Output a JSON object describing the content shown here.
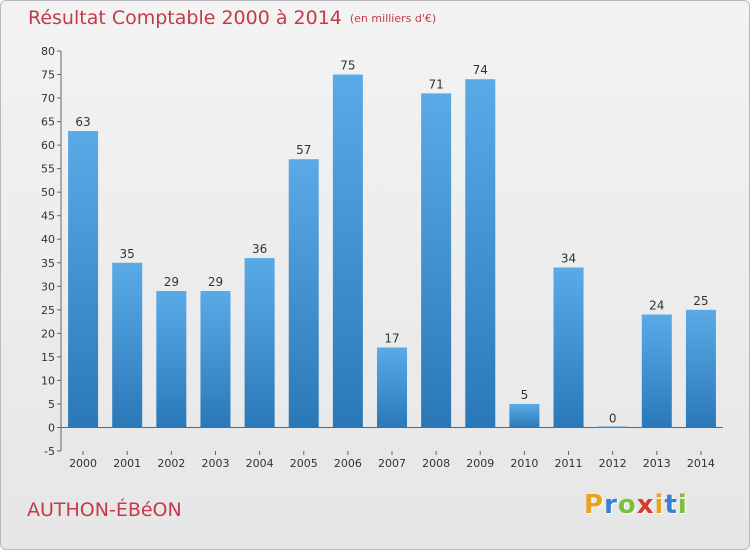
{
  "title": "Résultat Comptable 2000 à 2014",
  "subtitle": "(en milliers d'€)",
  "commune": "AUTHON-ÉBéON",
  "logo": {
    "letters": [
      "P",
      "r",
      "o",
      "x",
      "i",
      "t",
      "i"
    ],
    "colors": [
      "#e8a21b",
      "#3a7fd0",
      "#7bbf3a",
      "#d63a2a",
      "#e8a21b",
      "#3a7fd0",
      "#7bbf3a"
    ]
  },
  "colors": {
    "title": "#c43a4a",
    "bar_top": "#5aaae8",
    "bar_bottom": "#2a78b8"
  },
  "chart_data": {
    "type": "bar",
    "categories": [
      "2000",
      "2001",
      "2002",
      "2003",
      "2004",
      "2005",
      "2006",
      "2007",
      "2008",
      "2009",
      "2010",
      "2011",
      "2012",
      "2013",
      "2014"
    ],
    "values": [
      63,
      35,
      29,
      29,
      36,
      57,
      75,
      17,
      71,
      74,
      5,
      34,
      0,
      24,
      25
    ],
    "ylim": [
      -5,
      80
    ],
    "yticks": [
      -5,
      0,
      5,
      10,
      15,
      20,
      25,
      30,
      35,
      40,
      45,
      50,
      55,
      60,
      65,
      70,
      75,
      80
    ],
    "grid": false
  }
}
